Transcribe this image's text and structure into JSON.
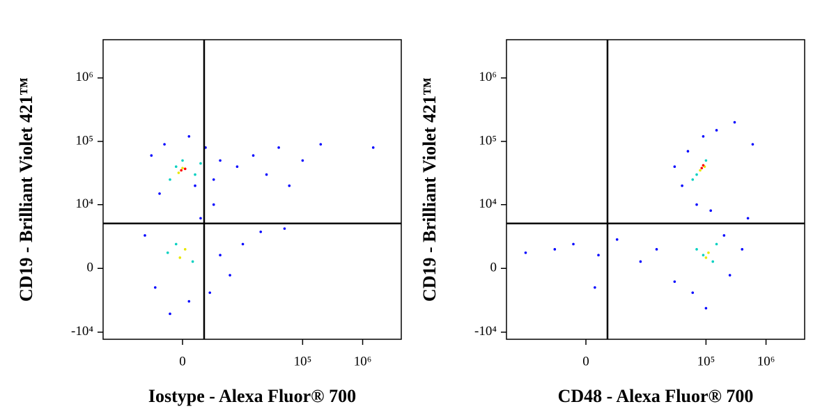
{
  "chart_data": [
    {
      "type": "scatter",
      "x_label": "Iostype - Alexa Fluor® 700",
      "y_label": "CD19 - Brilliant Violet 421™",
      "xlim": [
        -21000,
        4400000
      ],
      "ylim": [
        -13000,
        4000000
      ],
      "xticks": [
        0,
        {
          "value": 100000,
          "label": "10⁵"
        },
        {
          "value": 1000000,
          "label": "10⁶"
        }
      ],
      "yticks": [
        {
          "value": -10000,
          "label": "-10⁴"
        },
        0,
        {
          "value": 10000,
          "label": "10⁴"
        },
        {
          "value": 100000,
          "label": "10⁵"
        },
        {
          "value": 1000000,
          "label": "10⁶"
        }
      ],
      "gate": {
        "x": 1850,
        "y": 4900
      },
      "series": [
        {
          "color": "#0000ff",
          "x": [
            -3000,
            -1500,
            500,
            2000,
            4000,
            1000,
            -2000,
            3000,
            8000,
            15000,
            25000,
            40000,
            60000,
            100000,
            3000,
            1500,
            -4000,
            -2500,
            500,
            2500,
            4000,
            10000,
            20000,
            50000,
            -1000,
            6000,
            200000,
            1500000
          ],
          "y": [
            60000,
            90000,
            120000,
            80000,
            50000,
            20000,
            15000,
            25000,
            40000,
            60000,
            30000,
            80000,
            20000,
            50000,
            10000,
            6000,
            3000,
            -1500,
            -3000,
            -2000,
            1000,
            2000,
            3500,
            4000,
            -5000,
            -500,
            90000,
            80000
          ]
        },
        {
          "color": "#00d0c0",
          "x": [
            -500,
            1000,
            0,
            -1000,
            1500,
            -500,
            800,
            -1200
          ],
          "y": [
            40000,
            30000,
            50000,
            25000,
            45000,
            2000,
            500,
            1200
          ]
        },
        {
          "color": "#e8e800",
          "x": [
            0,
            -300,
            200,
            -200
          ],
          "y": [
            38000,
            32000,
            1500,
            800
          ]
        },
        {
          "color": "#ff0000",
          "x": [
            -100,
            200
          ],
          "y": [
            35000,
            37000
          ]
        }
      ]
    },
    {
      "type": "scatter",
      "x_label": "CD48 - Alexa Fluor® 700",
      "y_label": "CD19 - Brilliant Violet 421™",
      "xlim": [
        -21000,
        4400000
      ],
      "ylim": [
        -13000,
        4000000
      ],
      "xticks": [
        0,
        {
          "value": 100000,
          "label": "10⁵"
        },
        {
          "value": 1000000,
          "label": "10⁶"
        }
      ],
      "yticks": [
        {
          "value": -10000,
          "label": "-10⁴"
        },
        0,
        {
          "value": 10000,
          "label": "10⁴"
        },
        {
          "value": 100000,
          "label": "10⁵"
        },
        {
          "value": 1000000,
          "label": "10⁶"
        }
      ],
      "gate": {
        "x": 1850,
        "y": 4900
      },
      "series": [
        {
          "color": "#0000ff",
          "x": [
            30000,
            50000,
            90000,
            150000,
            300000,
            40000,
            70000,
            120000,
            -3000,
            -1000,
            1000,
            3000,
            8000,
            15000,
            30000,
            60000,
            200000,
            400000,
            500000,
            250000,
            100000,
            -10000,
            700,
            600000
          ],
          "y": [
            40000,
            70000,
            120000,
            150000,
            200000,
            20000,
            10000,
            8000,
            1500,
            2000,
            1000,
            2500,
            500,
            1500,
            -1000,
            -2000,
            3000,
            1500,
            6000,
            -500,
            -4000,
            1200,
            -1500,
            90000
          ]
        },
        {
          "color": "#00d0c0",
          "x": [
            70000,
            100000,
            60000,
            90000,
            130000,
            70000,
            150000
          ],
          "y": [
            30000,
            50000,
            25000,
            1000,
            500,
            1500,
            2000
          ]
        },
        {
          "color": "#e8e800",
          "x": [
            80000,
            95000,
            100000,
            110000
          ],
          "y": [
            35000,
            40000,
            800,
            1200
          ]
        },
        {
          "color": "#ff0000",
          "x": [
            85000,
            90000
          ],
          "y": [
            38000,
            42000
          ]
        }
      ]
    }
  ]
}
